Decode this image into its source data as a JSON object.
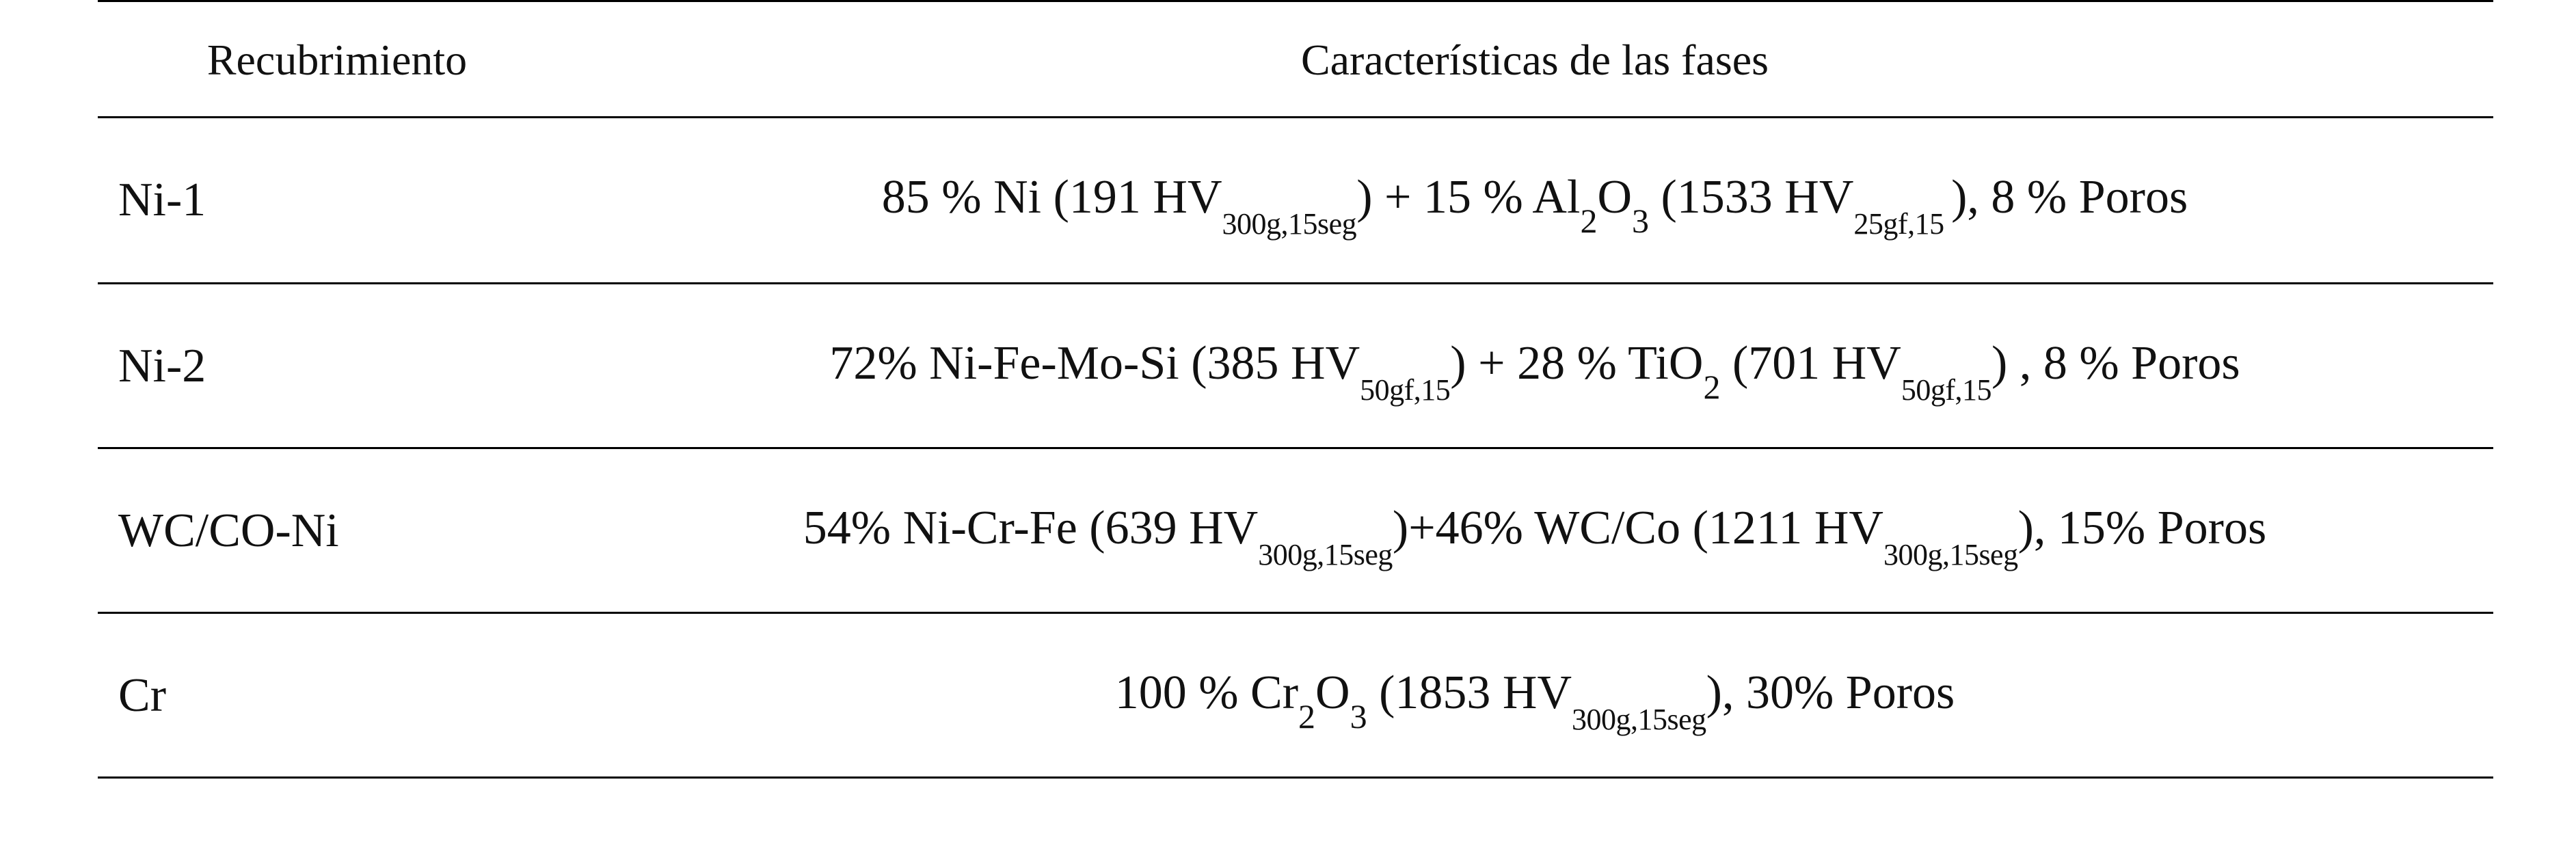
{
  "table": {
    "headers": {
      "coating": "Recubrimiento",
      "phases": "Características de las fases"
    },
    "rows": [
      {
        "coating": "Ni-1",
        "phases": [
          {
            "t": "85 % Ni (191 HV"
          },
          {
            "sub": "300g,15seg"
          },
          {
            "t": ") + 15 % Al"
          },
          {
            "chem": "2"
          },
          {
            "t": "O"
          },
          {
            "chem": "3"
          },
          {
            "t": " (1533 HV"
          },
          {
            "sub": "25gf,15 "
          },
          {
            "t": "), 8 % Poros"
          }
        ]
      },
      {
        "coating": "Ni-2",
        "phases": [
          {
            "t": "72% Ni-Fe-Mo-Si (385 HV"
          },
          {
            "sub": "50gf,15"
          },
          {
            "t": ") + 28 % TiO"
          },
          {
            "chem": "2"
          },
          {
            "t": " (701 HV"
          },
          {
            "sub": "50gf,15"
          },
          {
            "t": ") , 8 % Poros"
          }
        ]
      },
      {
        "coating": "WC/CO-Ni",
        "phases": [
          {
            "t": "54% Ni-Cr-Fe (639 HV"
          },
          {
            "sub": "300g,15seg"
          },
          {
            "t": ")+46% WC/Co (1211 HV"
          },
          {
            "sub": "300g,15seg"
          },
          {
            "t": "), 15% Poros"
          }
        ]
      },
      {
        "coating": "Cr",
        "phases": [
          {
            "t": "100 % Cr"
          },
          {
            "chem": "2"
          },
          {
            "t": "O"
          },
          {
            "chem": "3"
          },
          {
            "t": " (1853 HV"
          },
          {
            "sub": "300g,15seg"
          },
          {
            "t": "), 30% Poros"
          }
        ]
      }
    ]
  }
}
